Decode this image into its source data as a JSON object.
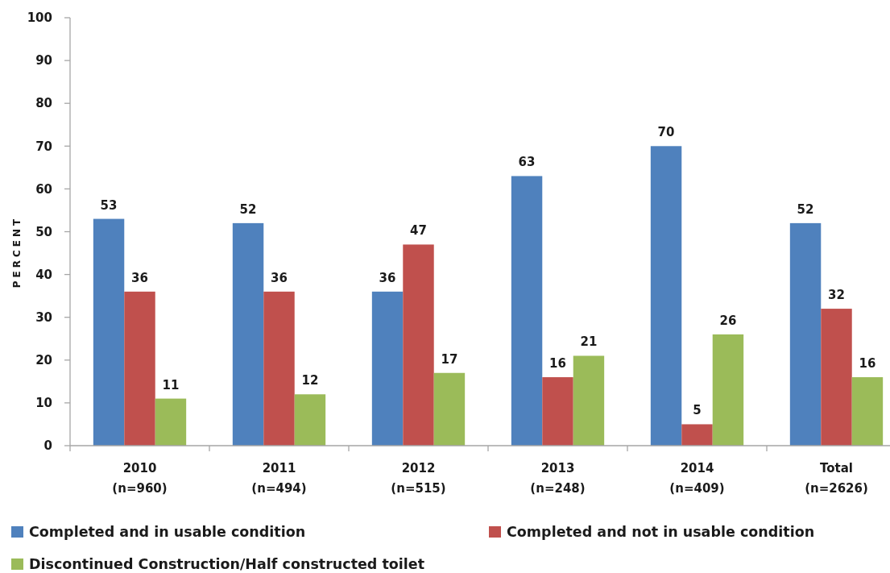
{
  "chart_data": {
    "type": "bar",
    "categories": [
      "2010\n(n=960)",
      "2011\n(n=494)",
      "2012\n(n=515)",
      "2013\n(n=248)",
      "2014\n(n=409)",
      "Total\n(n=2626)"
    ],
    "series": [
      {
        "name": "Completed and in usable condition",
        "color": "#4f81bd",
        "values": [
          53,
          52,
          36,
          63,
          70,
          52
        ]
      },
      {
        "name": "Completed and not in usable condition",
        "color": "#c0504d",
        "values": [
          36,
          36,
          47,
          16,
          5,
          32
        ]
      },
      {
        "name": "Discontinued Construction/Half constructed toilet",
        "color": "#9bbb59",
        "values": [
          11,
          12,
          17,
          21,
          26,
          16
        ]
      }
    ],
    "ylabel": "PERCENT",
    "ylim": [
      0,
      100
    ],
    "yticks": [
      0,
      10,
      20,
      30,
      40,
      50,
      60,
      70,
      80,
      90,
      100
    ],
    "data_labels": true,
    "legend": "bottom",
    "grid": false
  }
}
